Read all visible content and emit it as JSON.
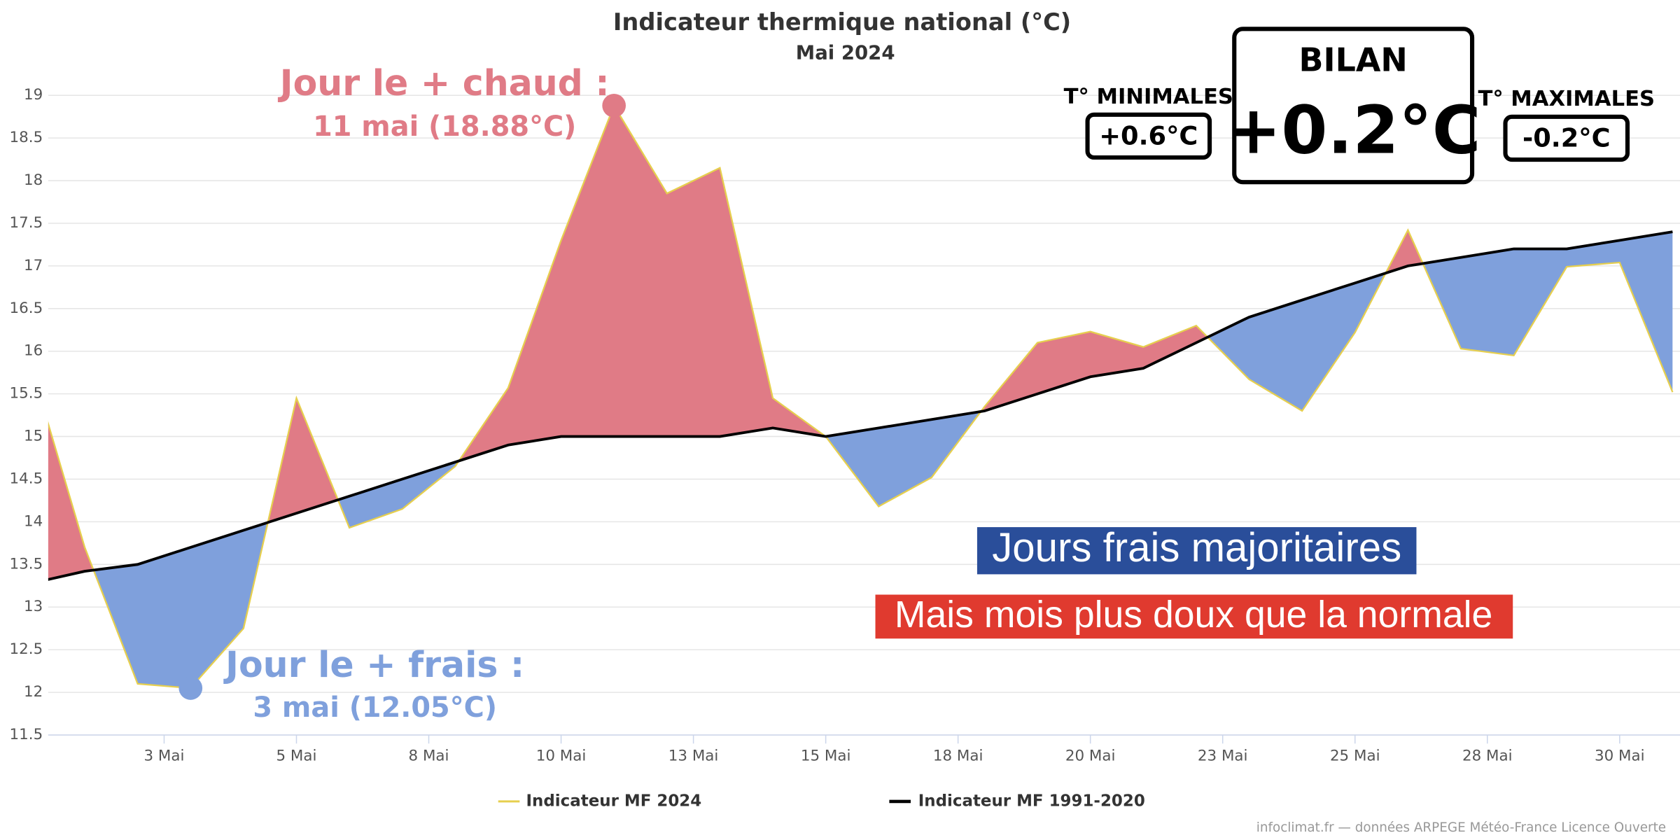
{
  "chart_data": {
    "type": "line",
    "title": "Indicateur thermique national (°C)",
    "subtitle": "Mai 2024",
    "x": [
      0,
      1,
      2,
      3,
      4,
      5,
      6,
      7,
      8,
      9,
      10,
      11,
      12,
      13,
      14,
      15,
      16,
      17,
      18,
      19,
      20,
      21,
      22,
      23,
      24,
      25,
      26,
      27,
      28,
      29,
      30,
      31
    ],
    "series": [
      {
        "name": "Indicateur MF 2024",
        "color": "#e6cf4f",
        "values": [
          15.8,
          13.7,
          12.1,
          12.05,
          12.75,
          15.45,
          13.93,
          14.15,
          14.65,
          15.57,
          17.3,
          18.88,
          17.85,
          18.15,
          15.45,
          15.0,
          14.18,
          14.52,
          15.35,
          16.1,
          16.23,
          16.05,
          16.3,
          15.67,
          15.3,
          16.22,
          17.42,
          16.03,
          15.95,
          16.99,
          17.04,
          15.52
        ]
      },
      {
        "name": "Indicateur MF 1991-2020",
        "color": "#000000",
        "values": [
          13.28,
          13.42,
          13.5,
          13.7,
          13.9,
          14.1,
          14.3,
          14.5,
          14.7,
          14.9,
          15.0,
          15.0,
          15.0,
          15.0,
          15.1,
          15.0,
          15.1,
          15.2,
          15.3,
          15.5,
          15.7,
          15.8,
          16.1,
          16.4,
          16.6,
          16.8,
          17.0,
          17.1,
          17.2,
          17.2,
          17.3,
          17.4
        ]
      }
    ],
    "above_color": "#e07b86",
    "below_color": "#7fa0dc",
    "xlim": [
      0.31,
      31.14
    ],
    "xticks": [
      {
        "value": 2.5,
        "label": "3 Mai"
      },
      {
        "value": 5,
        "label": "5 Mai"
      },
      {
        "value": 7.5,
        "label": "8 Mai"
      },
      {
        "value": 10,
        "label": "10 Mai"
      },
      {
        "value": 12.5,
        "label": "13 Mai"
      },
      {
        "value": 15,
        "label": "15 Mai"
      },
      {
        "value": 17.5,
        "label": "18 Mai"
      },
      {
        "value": 20,
        "label": "20 Mai"
      },
      {
        "value": 22.5,
        "label": "23 Mai"
      },
      {
        "value": 25,
        "label": "25 Mai"
      },
      {
        "value": 27.5,
        "label": "28 Mai"
      },
      {
        "value": 30,
        "label": "30 Mai"
      }
    ],
    "ylim": [
      11.5,
      19.2
    ],
    "yticks": [
      11.5,
      12,
      12.5,
      13,
      13.5,
      14,
      14.5,
      15,
      15.5,
      16,
      16.5,
      17,
      17.5,
      18,
      18.5,
      19
    ],
    "grid": true,
    "hottest": {
      "line1": "Jour le + chaud :",
      "line2": "11 mai (18.88°C)"
    },
    "coolest": {
      "line1": "Jour le + frais :",
      "line2": "3 mai (12.05°C)"
    },
    "note1": "Jours frais majoritaires",
    "note2": "Mais mois plus doux que la normale",
    "bilan": {
      "title": "BILAN",
      "value": "+0.2°C"
    },
    "minimales": {
      "title": "T° MINIMALES",
      "value": "+0.6°C"
    },
    "maximales": {
      "title": "T° MAXIMALES",
      "value": "-0.2°C"
    },
    "credit": "infoclimat.fr — données ARPEGE Météo-France Licence Ouverte"
  }
}
